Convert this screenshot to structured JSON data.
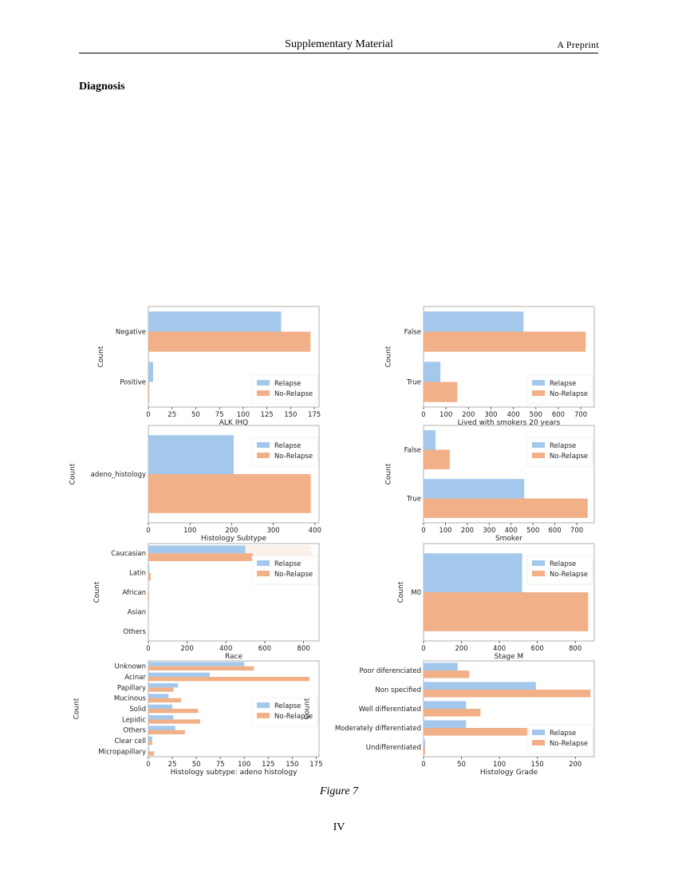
{
  "header": {
    "title": "Supplementary Material",
    "right_label": "A Preprint"
  },
  "section": {
    "title": "Diagnosis"
  },
  "figure": {
    "caption": "Figure 7",
    "page_number": "IV"
  },
  "colors": {
    "relapse": "#a4c8ec",
    "no_relapse": "#f1b088",
    "axis": "#b0b0b0"
  },
  "chart_data": [
    {
      "type": "bar",
      "orientation": "horizontal",
      "categories": [
        "Negative",
        "Positive"
      ],
      "series": [
        {
          "name": "Relapse",
          "values": [
            140,
            5
          ]
        },
        {
          "name": "No-Relapse",
          "values": [
            171,
            1
          ]
        }
      ],
      "xlabel": "ALK IHQ",
      "ylabel": "Count",
      "xlim": [
        0,
        180
      ],
      "xticks": [
        0,
        25,
        50,
        75,
        100,
        125,
        150,
        175
      ],
      "legend": "bottom-right"
    },
    {
      "type": "bar",
      "orientation": "horizontal",
      "categories": [
        "False",
        "True"
      ],
      "series": [
        {
          "name": "Relapse",
          "values": [
            445,
            75
          ]
        },
        {
          "name": "No-Relapse",
          "values": [
            722,
            150
          ]
        }
      ],
      "xlabel": "Lived with smokers 20 years",
      "ylabel": "Count",
      "xlim": [
        0,
        760
      ],
      "xticks": [
        0,
        100,
        200,
        300,
        400,
        500,
        600,
        700
      ],
      "legend": "bottom-right"
    },
    {
      "type": "bar",
      "orientation": "horizontal",
      "categories": [
        "adeno_histology"
      ],
      "series": [
        {
          "name": "Relapse",
          "values": [
            205
          ]
        },
        {
          "name": "No-Relapse",
          "values": [
            390
          ]
        }
      ],
      "xlabel": "Histology Subtype",
      "ylabel": "Count",
      "xlim": [
        0,
        410
      ],
      "xticks": [
        0,
        100,
        200,
        300,
        400
      ],
      "legend": "top-right"
    },
    {
      "type": "bar",
      "orientation": "horizontal",
      "categories": [
        "False",
        "True"
      ],
      "series": [
        {
          "name": "Relapse",
          "values": [
            55,
            460
          ]
        },
        {
          "name": "No-Relapse",
          "values": [
            120,
            750
          ]
        }
      ],
      "xlabel": "Smoker",
      "ylabel": "Count",
      "xlim": [
        0,
        780
      ],
      "xticks": [
        0,
        100,
        200,
        300,
        400,
        500,
        600,
        700
      ],
      "legend": "top-right"
    },
    {
      "type": "bar",
      "orientation": "horizontal",
      "categories": [
        "Caucasian",
        "Latin",
        "African",
        "Asian",
        "Others"
      ],
      "series": [
        {
          "name": "Relapse",
          "values": [
            500,
            5,
            3,
            1,
            1
          ]
        },
        {
          "name": "No-Relapse",
          "values": [
            540,
            12,
            4,
            2,
            1
          ]
        }
      ],
      "ghost": {
        "category": "Caucasian",
        "value": 840
      },
      "xlabel": "Race",
      "ylabel": "Count",
      "xlim": [
        0,
        880
      ],
      "xticks": [
        0,
        200,
        400,
        600,
        800
      ],
      "legend": "top-right"
    },
    {
      "type": "bar",
      "orientation": "horizontal",
      "categories": [
        "M0"
      ],
      "series": [
        {
          "name": "Relapse",
          "values": [
            520
          ]
        },
        {
          "name": "No-Relapse",
          "values": [
            868
          ]
        }
      ],
      "xlabel": "Stage M",
      "ylabel": "Count",
      "xlim": [
        0,
        900
      ],
      "xticks": [
        0,
        200,
        400,
        600,
        800
      ],
      "legend": "top-right"
    },
    {
      "type": "bar",
      "orientation": "horizontal",
      "categories": [
        "Unknown",
        "Acinar",
        "Papillary",
        "Mucinous",
        "Solid",
        "Lepidic",
        "Others",
        "Clear cell",
        "Micropapillary"
      ],
      "series": [
        {
          "name": "Relapse",
          "values": [
            100,
            64,
            31,
            21,
            25,
            26,
            28,
            4,
            1
          ]
        },
        {
          "name": "No-Relapse",
          "values": [
            110,
            168,
            26,
            34,
            52,
            54,
            38,
            4,
            6
          ]
        }
      ],
      "xlabel": "Histology subtype: adeno histology",
      "ylabel": "Count",
      "xlim": [
        0,
        178
      ],
      "xticks": [
        0,
        25,
        50,
        75,
        100,
        125,
        150,
        175
      ],
      "legend": "right"
    },
    {
      "type": "bar",
      "orientation": "horizontal",
      "categories": [
        "Poor diferenciated",
        "Non specified",
        "Well differentiated",
        "Moderately differentiated",
        "Undifferentiated"
      ],
      "series": [
        {
          "name": "Relapse",
          "values": [
            45,
            148,
            56,
            56,
            2
          ]
        },
        {
          "name": "No-Relapse",
          "values": [
            60,
            220,
            75,
            140,
            2
          ]
        }
      ],
      "xlabel": "Histology Grade",
      "ylabel": "Count",
      "xlim": [
        0,
        225
      ],
      "xticks": [
        0,
        50,
        100,
        150,
        200
      ],
      "legend": "bottom-right"
    }
  ]
}
